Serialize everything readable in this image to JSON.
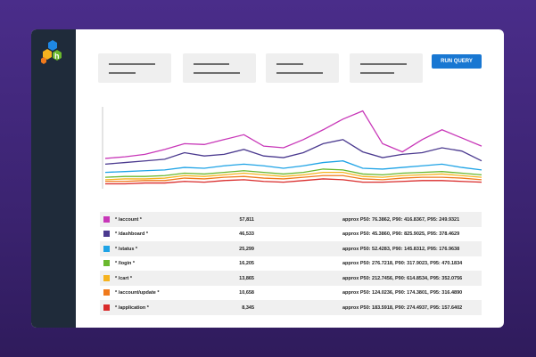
{
  "button": "RUN QUERY",
  "chart": {
    "ylim": [
      0,
      100
    ],
    "series": [
      {
        "name": "* /account *",
        "color": "#c837b8",
        "count": "57,811",
        "approx": "approx P50: 76.3862, P90: 416.8367, P95: 249.9321",
        "values": [
          37,
          39,
          42,
          48,
          55,
          54,
          60,
          66,
          52,
          50,
          60,
          72,
          85,
          95,
          55,
          45,
          60,
          72,
          62,
          52
        ]
      },
      {
        "name": "* /dashboard *",
        "color": "#4b3a8f",
        "count": "46,533",
        "approx": "approx P50: 45.3860, P90: 825.9025, P95: 378.4629",
        "values": [
          30,
          32,
          34,
          36,
          44,
          40,
          42,
          48,
          40,
          38,
          44,
          55,
          60,
          45,
          38,
          42,
          44,
          50,
          46,
          34
        ]
      },
      {
        "name": "* /status *",
        "color": "#1ea3e6",
        "count": "25,299",
        "approx": "approx P50: 52.4283, P90: 145.8312, P95: 176.9638",
        "values": [
          20,
          21,
          22,
          23,
          26,
          25,
          28,
          30,
          28,
          25,
          28,
          32,
          34,
          25,
          24,
          26,
          28,
          30,
          26,
          23
        ]
      },
      {
        "name": "* /login *",
        "color": "#6ab82e",
        "count": "16,205",
        "approx": "approx P50: 276.7218, P90: 317.9023, P95: 470.1834",
        "values": [
          14,
          15,
          15,
          16,
          19,
          18,
          20,
          22,
          20,
          18,
          20,
          24,
          23,
          18,
          17,
          19,
          20,
          21,
          19,
          17
        ]
      },
      {
        "name": "* /cart *",
        "color": "#f5b31f",
        "count": "13,865",
        "approx": "approx P50: 212.7456, P90: 614.8534, P95: 352.0756",
        "values": [
          11,
          12,
          12,
          13,
          16,
          15,
          17,
          19,
          17,
          15,
          17,
          20,
          20,
          15,
          14,
          16,
          17,
          18,
          16,
          14
        ]
      },
      {
        "name": "* /account/update *",
        "color": "#f07a1c",
        "count": "10,658",
        "approx": "approx P50: 124.0236, P90: 174.3801, P95: 316.4890",
        "values": [
          9,
          9,
          10,
          10,
          13,
          12,
          14,
          15,
          13,
          12,
          14,
          16,
          16,
          12,
          11,
          13,
          14,
          14,
          13,
          11
        ]
      },
      {
        "name": "* /application *",
        "color": "#d92a2a",
        "count": "8,345",
        "approx": "approx P50: 183.5918, P90: 274.4937, P95: 157.6402",
        "values": [
          6,
          6,
          7,
          7,
          9,
          8,
          10,
          11,
          9,
          8,
          10,
          12,
          11,
          8,
          8,
          9,
          10,
          10,
          9,
          8
        ]
      }
    ]
  }
}
